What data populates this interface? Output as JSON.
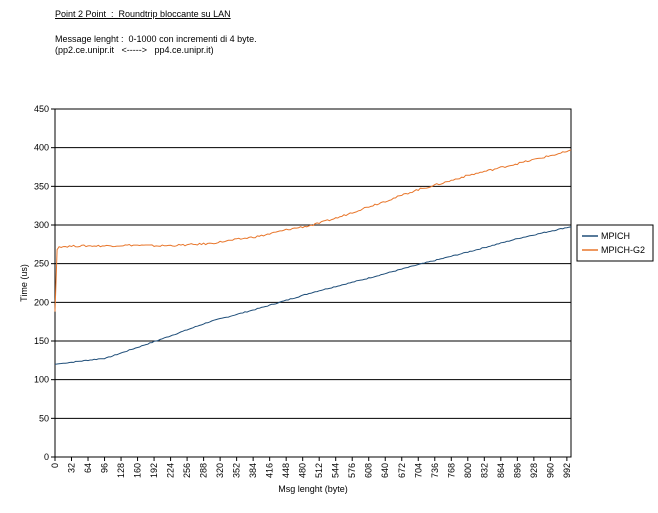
{
  "header": {
    "title": "Point 2 Point  :  Roundtrip bloccante su LAN",
    "message_length": "Message lenght :  0-1000 con incrementi di 4 byte.",
    "hosts": "(pp2.ce.unipr.it   <----->   pp4.ce.unipr.it)"
  },
  "chart_data": {
    "type": "line",
    "xlabel": "Msg lenght (byte)",
    "ylabel": "Time (us)",
    "xlim": [
      0,
      1000
    ],
    "ylim": [
      0,
      450
    ],
    "yticks": [
      0,
      50,
      100,
      150,
      200,
      250,
      300,
      350,
      400,
      450
    ],
    "xticks": [
      0,
      32,
      64,
      96,
      128,
      160,
      192,
      224,
      256,
      288,
      320,
      352,
      384,
      416,
      448,
      480,
      512,
      544,
      576,
      608,
      640,
      672,
      704,
      736,
      768,
      800,
      832,
      864,
      896,
      928,
      960,
      992
    ],
    "grid": "horizontal",
    "legend_position": "right",
    "x_step": 4,
    "series": [
      {
        "name": "MPICH",
        "color": "#1f4e79",
        "points": [
          [
            0,
            120
          ],
          [
            100,
            128
          ],
          [
            200,
            151
          ],
          [
            300,
            175
          ],
          [
            400,
            193
          ],
          [
            500,
            213
          ],
          [
            600,
            230
          ],
          [
            700,
            248
          ],
          [
            800,
            265
          ],
          [
            900,
            283
          ],
          [
            1000,
            298
          ]
        ]
      },
      {
        "name": "MPICH-G2",
        "color": "#e8762b",
        "points": [
          [
            0,
            188
          ],
          [
            4,
            268
          ],
          [
            8,
            272
          ],
          [
            50,
            273
          ],
          [
            100,
            273
          ],
          [
            150,
            274
          ],
          [
            200,
            273
          ],
          [
            250,
            274
          ],
          [
            300,
            276
          ],
          [
            350,
            281
          ],
          [
            400,
            286
          ],
          [
            450,
            294
          ],
          [
            500,
            300
          ],
          [
            550,
            310
          ],
          [
            600,
            322
          ],
          [
            650,
            333
          ],
          [
            700,
            345
          ],
          [
            750,
            354
          ],
          [
            800,
            364
          ],
          [
            850,
            372
          ],
          [
            900,
            380
          ],
          [
            950,
            388
          ],
          [
            1000,
            396
          ]
        ]
      }
    ]
  }
}
